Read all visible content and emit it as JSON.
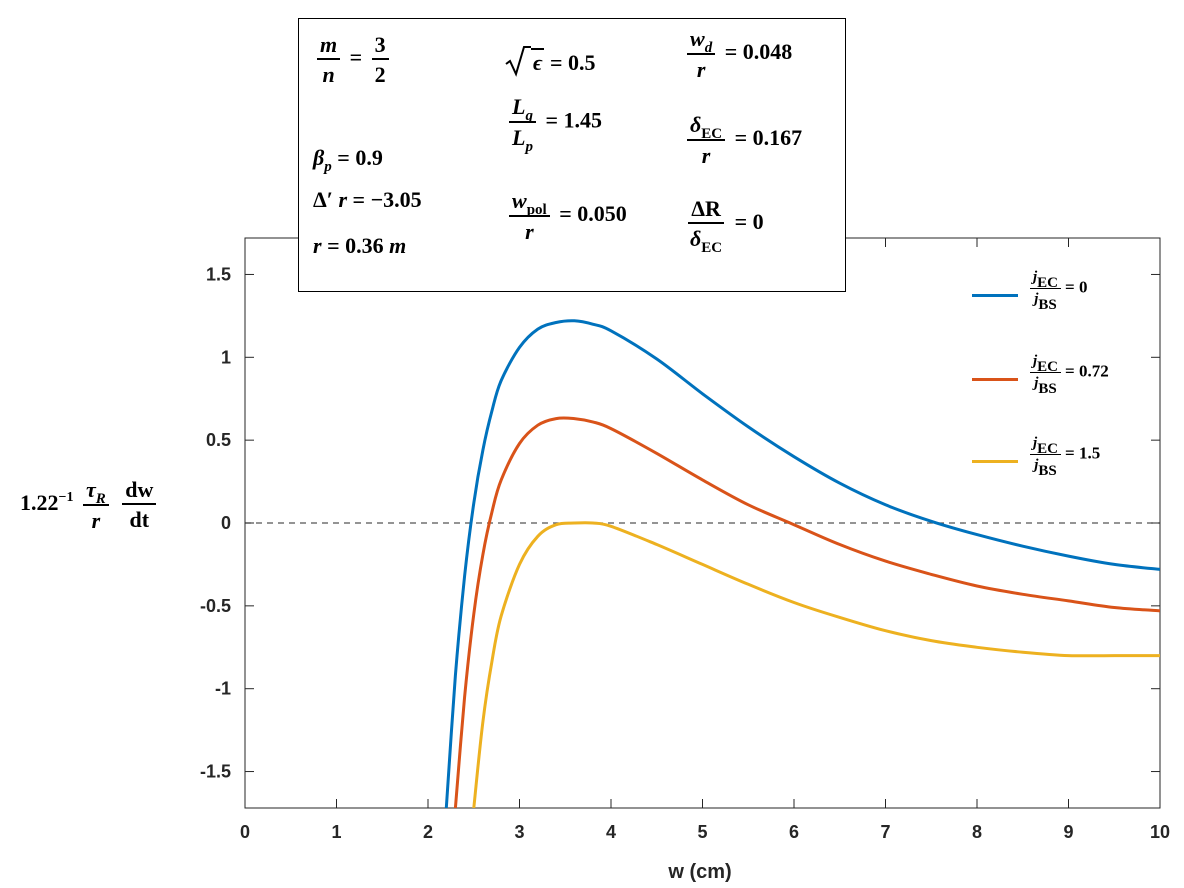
{
  "chart_data": {
    "type": "line",
    "xlabel": "w (cm)",
    "ylabel": {
      "prefix": "1.22",
      "prefix_exp": "−1",
      "frac1_num": "τ",
      "frac1_num_sub": "R",
      "frac1_den": "r",
      "frac2_num": "dw",
      "frac2_den": "dt"
    },
    "xlim": [
      0,
      10
    ],
    "ylim": [
      -1.72,
      1.72
    ],
    "xticks": [
      0,
      1,
      2,
      3,
      4,
      5,
      6,
      7,
      8,
      9,
      10
    ],
    "yticks": [
      -1.5,
      -1,
      -0.5,
      0,
      0.5,
      1,
      1.5
    ],
    "xtick_labels": [
      "0",
      "1",
      "2",
      "3",
      "4",
      "5",
      "6",
      "7",
      "8",
      "9",
      "10"
    ],
    "ytick_labels": [
      "-1.5",
      "-1",
      "-0.5",
      "0",
      "0.5",
      "1",
      "1.5"
    ],
    "zero_line": {
      "y": 0,
      "style": "dashed"
    },
    "grid": false,
    "legend_position": "right",
    "x": [
      2.2,
      2.3,
      2.4,
      2.5,
      2.6,
      2.7,
      2.8,
      3.0,
      3.2,
      3.4,
      3.6,
      3.8,
      4.0,
      4.5,
      5.0,
      5.5,
      6.0,
      6.5,
      7.0,
      7.5,
      8.0,
      8.5,
      9.0,
      9.5,
      10.0
    ],
    "series": [
      {
        "label_num": "j",
        "label_num_sub": "EC",
        "label_den": "j",
        "label_den_sub": "BS",
        "label_value": "= 0",
        "color": "#0072BD",
        "values": [
          -1.72,
          -0.92,
          -0.32,
          0.12,
          0.44,
          0.68,
          0.86,
          1.06,
          1.17,
          1.21,
          1.22,
          1.2,
          1.16,
          0.99,
          0.78,
          0.58,
          0.4,
          0.24,
          0.11,
          0.01,
          -0.07,
          -0.14,
          -0.2,
          -0.25,
          -0.28
        ]
      },
      {
        "label_num": "j",
        "label_num_sub": "EC",
        "label_den": "j",
        "label_den_sub": "BS",
        "label_value": "= 0.72",
        "color": "#D95319",
        "values": [
          null,
          -1.72,
          -1.05,
          -0.55,
          -0.19,
          0.07,
          0.26,
          0.48,
          0.59,
          0.63,
          0.63,
          0.61,
          0.57,
          0.42,
          0.26,
          0.11,
          -0.01,
          -0.13,
          -0.23,
          -0.31,
          -0.38,
          -0.43,
          -0.47,
          -0.51,
          -0.53
        ]
      },
      {
        "label_num": "j",
        "label_num_sub": "EC",
        "label_den": "j",
        "label_den_sub": "BS",
        "label_value": "= 1.5",
        "color": "#EDB120",
        "values": [
          null,
          null,
          null,
          -1.72,
          -1.2,
          -0.83,
          -0.56,
          -0.25,
          -0.08,
          -0.01,
          0.0,
          0.0,
          -0.02,
          -0.13,
          -0.25,
          -0.37,
          -0.48,
          -0.57,
          -0.65,
          -0.71,
          -0.75,
          -0.78,
          -0.8,
          -0.8,
          -0.8
        ]
      }
    ],
    "parameters": {
      "mn_num": "m",
      "mn_den": "n",
      "mn_eq": "=",
      "mn_val_num": "3",
      "mn_val_den": "2",
      "beta_sym": "β",
      "beta_sub": "p",
      "beta_val": "= 0.9",
      "delta_sym": "Δ′",
      "delta_r": "r",
      "delta_val": "= −3.05",
      "r_sym": "r",
      "r_val": "= 0.36",
      "r_unit": "m",
      "eps_val": "= 0.5",
      "eps_sym": "ϵ",
      "lq_num": "L",
      "lq_num_sub": "q",
      "lq_den": "L",
      "lq_den_sub": "p",
      "lq_val": "= 1.45",
      "wpol_num": "w",
      "wpol_num_sub": "pol",
      "wpol_den": "r",
      "wpol_val": "= 0.050",
      "wd_num": "w",
      "wd_num_sub": "d",
      "wd_den": "r",
      "wd_val": "= 0.048",
      "dec_num": "δ",
      "dec_num_sub": "EC",
      "dec_den": "r",
      "dec_val": "= 0.167",
      "dr_num": "ΔR",
      "dr_den": "δ",
      "dr_den_sub": "EC",
      "dr_val": "= 0"
    }
  }
}
